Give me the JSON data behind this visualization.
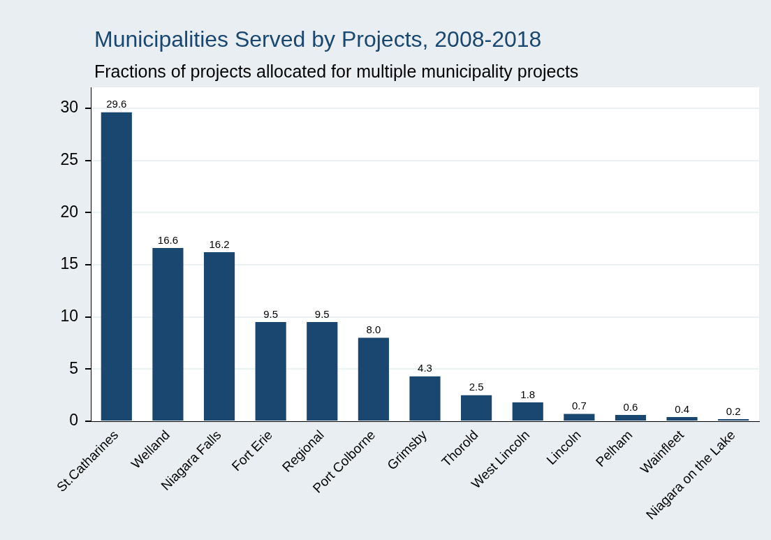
{
  "chart_data": {
    "type": "bar",
    "title": "Municipalities Served by Projects, 2008-2018",
    "subtitle": "Fractions of projects allocated for multiple municipality projects",
    "categories": [
      "St.Catharines",
      "Welland",
      "Niagara Falls",
      "Fort Erie",
      "Regional",
      "Port Colborne",
      "Grimsby",
      "Thorold",
      "West Lincoln",
      "Lincoln",
      "Pelham",
      "Wainfleet",
      "Niagara on the Lake"
    ],
    "values": [
      29.6,
      16.6,
      16.2,
      9.5,
      9.5,
      8.0,
      4.3,
      2.5,
      1.8,
      0.7,
      0.6,
      0.4,
      0.2
    ],
    "value_labels": [
      "29.6",
      "16.6",
      "16.2",
      "9.5",
      "9.5",
      "8.0",
      "4.3",
      "2.5",
      "1.8",
      "0.7",
      "0.6",
      "0.4",
      "0.2"
    ],
    "color": "#1a476f",
    "ylim": [
      0,
      32
    ],
    "yticks": [
      0,
      5,
      10,
      15,
      20,
      25,
      30
    ],
    "grid": "y",
    "legend": false
  }
}
